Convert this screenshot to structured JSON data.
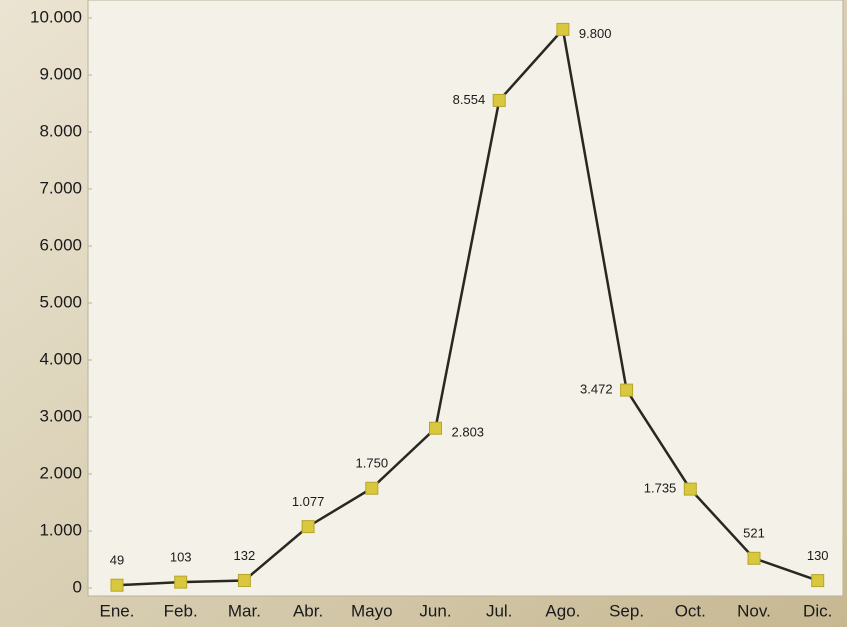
{
  "chart_data": {
    "type": "line",
    "categories": [
      "Ene.",
      "Feb.",
      "Mar.",
      "Abr.",
      "Mayo",
      "Jun.",
      "Jul.",
      "Ago.",
      "Sep.",
      "Oct.",
      "Nov.",
      "Dic."
    ],
    "values": [
      49,
      103,
      132,
      1077,
      1750,
      2803,
      8554,
      9800,
      3472,
      1735,
      521,
      130
    ],
    "value_labels": [
      "49",
      "103",
      "132",
      "1.077",
      "1.750",
      "2.803",
      "8.554",
      "9.800",
      "3.472",
      "1.735",
      "521",
      "130"
    ],
    "color": "#2a2622",
    "marker_color": "#d9c83e",
    "ylim": [
      0,
      10000
    ],
    "yticks": [
      0,
      {
        "value": 1000,
        "label": "1.000"
      },
      {
        "value": 2000,
        "label": "2.000"
      },
      {
        "value": 3000,
        "label": "3.000"
      },
      {
        "value": 4000,
        "label": "4.000"
      },
      {
        "value": 5000,
        "label": "5.000"
      },
      {
        "value": 6000,
        "label": "6.000"
      },
      {
        "value": 7000,
        "label": "7.000"
      },
      {
        "value": 8000,
        "label": "8.000"
      },
      {
        "value": 9000,
        "label": "9.000"
      },
      {
        "value": 10000,
        "label": "10.000"
      }
    ],
    "grid": false
  }
}
